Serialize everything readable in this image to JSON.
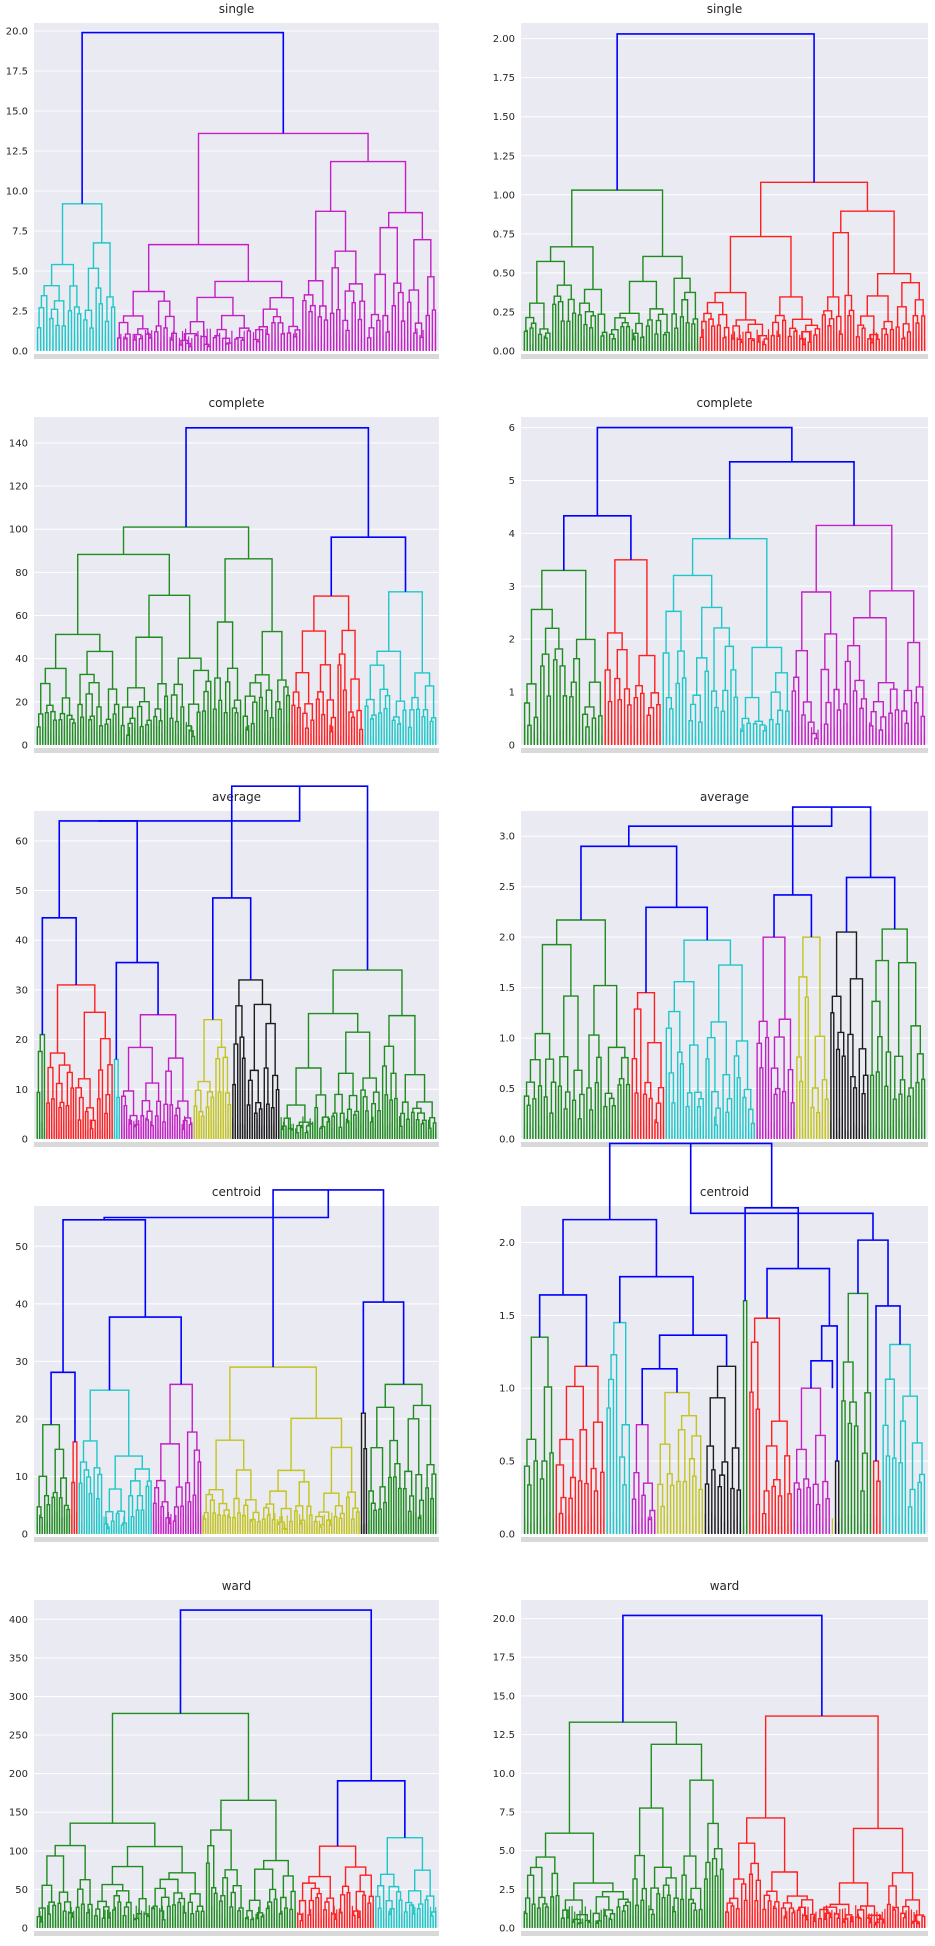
{
  "colors": {
    "above_threshold": "#0000ff",
    "green": "#1f8c1f",
    "red": "#ff1f1f",
    "cyan": "#1fc8c8",
    "magenta": "#c41fc4",
    "yellow": "#c4c41f",
    "black": "#1c1c1c",
    "plot_bg": "#eaeaf2",
    "grid": "#ffffff",
    "text": "#262626"
  },
  "chart_data": [
    {
      "type": "dendrogram",
      "title": "single",
      "ylim": [
        0,
        20.5
      ],
      "yticks": [
        "0.0",
        "2.5",
        "5.0",
        "7.5",
        "10.0",
        "12.5",
        "15.0",
        "17.5",
        "20.0"
      ],
      "grid": true,
      "clusters": [
        {
          "color": "cyan",
          "leaves": 26,
          "height": 9.2
        },
        {
          "color": "magenta",
          "leaves": 104,
          "height": 13.6
        }
      ],
      "top_merge_height": 19.9
    },
    {
      "type": "dendrogram",
      "title": "single",
      "ylim": [
        0,
        2.1
      ],
      "yticks": [
        "0.00",
        "0.25",
        "0.50",
        "0.75",
        "1.00",
        "1.25",
        "1.50",
        "1.75",
        "2.00"
      ],
      "grid": true,
      "clusters": [
        {
          "color": "green",
          "leaves": 62,
          "height": 1.03
        },
        {
          "color": "red",
          "leaves": 80,
          "height": 1.08
        }
      ],
      "top_merge_height": 2.03
    },
    {
      "type": "dendrogram",
      "title": "complete",
      "ylim": [
        0,
        152
      ],
      "yticks": [
        "0",
        "20",
        "40",
        "60",
        "80",
        "100",
        "120",
        "140"
      ],
      "grid": true,
      "clusters": [
        {
          "color": "green",
          "leaves": 94,
          "height": 101
        },
        {
          "color": "red",
          "leaves": 27,
          "height": 69
        },
        {
          "color": "cyan",
          "leaves": 27,
          "height": 71
        }
      ],
      "top_merge_height": 147
    },
    {
      "type": "dendrogram",
      "title": "complete",
      "ylim": [
        0,
        6.2
      ],
      "yticks": [
        "0",
        "1",
        "2",
        "3",
        "4",
        "5",
        "6"
      ],
      "grid": true,
      "clusters": [
        {
          "color": "green",
          "leaves": 25,
          "height": 3.3
        },
        {
          "color": "red",
          "leaves": 18,
          "height": 3.5
        },
        {
          "color": "cyan",
          "leaves": 40,
          "height": 3.9
        },
        {
          "color": "magenta",
          "leaves": 42,
          "height": 4.15
        }
      ],
      "top_merge_height": 6.0
    },
    {
      "type": "dendrogram",
      "title": "average",
      "ylim": [
        0,
        66
      ],
      "yticks": [
        "0",
        "10",
        "20",
        "30",
        "40",
        "50",
        "60"
      ],
      "grid": true,
      "clusters": [
        {
          "color": "green",
          "leaves": 4,
          "height": 21
        },
        {
          "color": "red",
          "leaves": 28,
          "height": 31
        },
        {
          "color": "cyan",
          "leaves": 3,
          "height": 16
        },
        {
          "color": "magenta",
          "leaves": 30,
          "height": 25
        },
        {
          "color": "yellow",
          "leaves": 16,
          "height": 24
        },
        {
          "color": "black",
          "leaves": 20,
          "height": 32
        },
        {
          "color": "green",
          "leaves": 65,
          "height": 34
        }
      ],
      "top_merge_height": 64
    },
    {
      "type": "dendrogram",
      "title": "average",
      "ylim": [
        0,
        3.25
      ],
      "yticks": [
        "0.0",
        "0.5",
        "1.0",
        "1.5",
        "2.0",
        "2.5",
        "3.0"
      ],
      "grid": true,
      "clusters": [
        {
          "color": "green",
          "leaves": 38,
          "height": 2.17
        },
        {
          "color": "red",
          "leaves": 12,
          "height": 1.45
        },
        {
          "color": "cyan",
          "leaves": 32,
          "height": 1.97
        },
        {
          "color": "magenta",
          "leaves": 14,
          "height": 2.0
        },
        {
          "color": "yellow",
          "leaves": 12,
          "height": 2.0
        },
        {
          "color": "black",
          "leaves": 14,
          "height": 2.05
        },
        {
          "color": "green",
          "leaves": 20,
          "height": 2.08
        }
      ],
      "top_merge_height": 3.1
    },
    {
      "type": "dendrogram",
      "title": "centroid",
      "ylim": [
        0,
        57
      ],
      "yticks": [
        "0",
        "10",
        "20",
        "30",
        "40",
        "50"
      ],
      "grid": true,
      "clusters": [
        {
          "color": "green",
          "leaves": 14,
          "height": 19
        },
        {
          "color": "red",
          "leaves": 3,
          "height": 16
        },
        {
          "color": "cyan",
          "leaves": 30,
          "height": 25
        },
        {
          "color": "magenta",
          "leaves": 20,
          "height": 26
        },
        {
          "color": "yellow",
          "leaves": 64,
          "height": 29
        },
        {
          "color": "black",
          "leaves": 3,
          "height": 21
        },
        {
          "color": "green",
          "leaves": 28,
          "height": 26
        }
      ],
      "top_merge_height": 55
    },
    {
      "type": "dendrogram",
      "title": "centroid",
      "ylim": [
        0,
        2.25
      ],
      "yticks": [
        "0.0",
        "0.5",
        "1.0",
        "1.5",
        "2.0"
      ],
      "grid": true,
      "clusters": [
        {
          "color": "green",
          "leaves": 10,
          "height": 1.35
        },
        {
          "color": "red",
          "leaves": 16,
          "height": 1.15
        },
        {
          "color": "cyan",
          "leaves": 8,
          "height": 1.45
        },
        {
          "color": "magenta",
          "leaves": 8,
          "height": 0.75
        },
        {
          "color": "yellow",
          "leaves": 15,
          "height": 0.97
        },
        {
          "color": "black",
          "leaves": 12,
          "height": 1.15
        },
        {
          "color": "green",
          "leaves": 2,
          "height": 1.6
        },
        {
          "color": "red",
          "leaves": 14,
          "height": 1.48
        },
        {
          "color": "magenta",
          "leaves": 12,
          "height": 1.0
        },
        {
          "color": "yellow",
          "leaves": 1,
          "height": 1.0
        },
        {
          "color": "black",
          "leaves": 2,
          "height": 0.5
        },
        {
          "color": "green",
          "leaves": 10,
          "height": 1.65
        },
        {
          "color": "red",
          "leaves": 3,
          "height": 0.5
        },
        {
          "color": "cyan",
          "leaves": 14,
          "height": 1.3
        }
      ],
      "top_merge_height": 2.2
    },
    {
      "type": "dendrogram",
      "title": "ward",
      "ylim": [
        0,
        425
      ],
      "yticks": [
        "0",
        "50",
        "100",
        "150",
        "200",
        "250",
        "300",
        "350",
        "400"
      ],
      "grid": true,
      "clusters": [
        {
          "color": "green",
          "leaves": 100,
          "height": 278
        },
        {
          "color": "red",
          "leaves": 30,
          "height": 106
        },
        {
          "color": "cyan",
          "leaves": 24,
          "height": 117
        }
      ],
      "top_merge_height": 412
    },
    {
      "type": "dendrogram",
      "title": "ward",
      "ylim": [
        0,
        21.2
      ],
      "yticks": [
        "0.0",
        "2.5",
        "5.0",
        "7.5",
        "10.0",
        "12.5",
        "15.0",
        "17.5",
        "20.0"
      ],
      "grid": true,
      "clusters": [
        {
          "color": "green",
          "leaves": 76,
          "height": 13.3
        },
        {
          "color": "red",
          "leaves": 76,
          "height": 13.7
        }
      ],
      "top_merge_height": 20.2
    }
  ]
}
